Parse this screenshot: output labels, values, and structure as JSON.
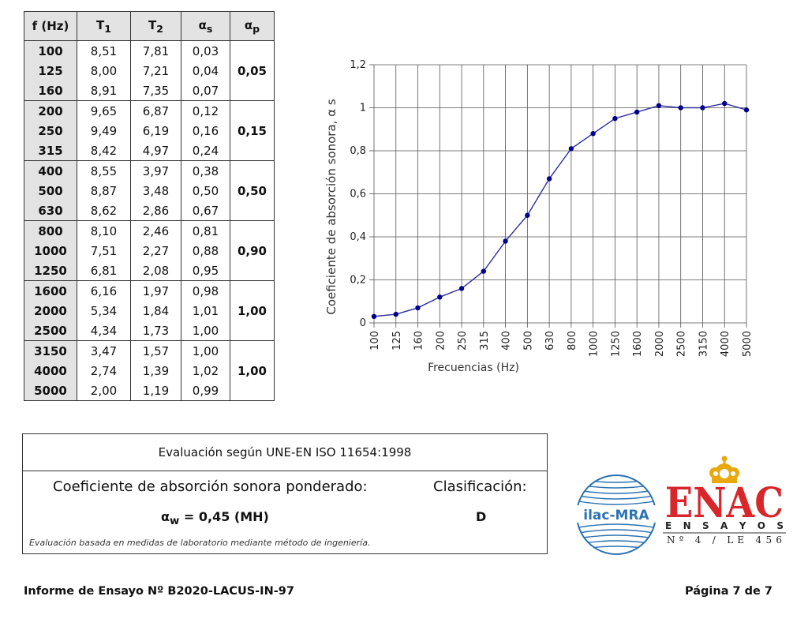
{
  "table": {
    "headers": [
      "f (Hz)",
      "T1",
      "T2",
      "αs",
      "αp"
    ],
    "groups": [
      {
        "rows": [
          [
            "100",
            "8,51",
            "7,81",
            "0,03"
          ],
          [
            "125",
            "8,00",
            "7,21",
            "0,04"
          ],
          [
            "160",
            "8,91",
            "7,35",
            "0,07"
          ]
        ],
        "ap": "0,05"
      },
      {
        "rows": [
          [
            "200",
            "9,65",
            "6,87",
            "0,12"
          ],
          [
            "250",
            "9,49",
            "6,19",
            "0,16"
          ],
          [
            "315",
            "8,42",
            "4,97",
            "0,24"
          ]
        ],
        "ap": "0,15"
      },
      {
        "rows": [
          [
            "400",
            "8,55",
            "3,97",
            "0,38"
          ],
          [
            "500",
            "8,87",
            "3,48",
            "0,50"
          ],
          [
            "630",
            "8,62",
            "2,86",
            "0,67"
          ]
        ],
        "ap": "0,50"
      },
      {
        "rows": [
          [
            "800",
            "8,10",
            "2,46",
            "0,81"
          ],
          [
            "1000",
            "7,51",
            "2,27",
            "0,88"
          ],
          [
            "1250",
            "6,81",
            "2,08",
            "0,95"
          ]
        ],
        "ap": "0,90"
      },
      {
        "rows": [
          [
            "1600",
            "6,16",
            "1,97",
            "0,98"
          ],
          [
            "2000",
            "5,34",
            "1,84",
            "1,01"
          ],
          [
            "2500",
            "4,34",
            "1,73",
            "1,00"
          ]
        ],
        "ap": "1,00"
      },
      {
        "rows": [
          [
            "3150",
            "3,47",
            "1,57",
            "1,00"
          ],
          [
            "4000",
            "2,74",
            "1,39",
            "1,02"
          ],
          [
            "5000",
            "2,00",
            "1,19",
            "0,99"
          ]
        ],
        "ap": "1,00"
      }
    ]
  },
  "chart_data": {
    "type": "line",
    "categories": [
      "100",
      "125",
      "160",
      "200",
      "250",
      "315",
      "400",
      "500",
      "630",
      "800",
      "1000",
      "1250",
      "1600",
      "2000",
      "2500",
      "3150",
      "4000",
      "5000"
    ],
    "series": [
      {
        "values": [
          0.03,
          0.04,
          0.07,
          0.12,
          0.16,
          0.24,
          0.38,
          0.5,
          0.67,
          0.81,
          0.88,
          0.95,
          0.98,
          1.01,
          1.0,
          1.0,
          1.02,
          0.99
        ]
      }
    ],
    "title": "",
    "xlabel": "Frecuencias (Hz)",
    "ylabel": "Coeficiente de absorción sonora, α s",
    "ylim": [
      0,
      1.2
    ],
    "yticks": [
      "0",
      "0,2",
      "0,4",
      "0,6",
      "0,8",
      "1",
      "1,2"
    ],
    "grid": true,
    "line_color": "#2e2e9e",
    "marker_color": "#00008b"
  },
  "evaluation": {
    "header": "Evaluación según UNE-EN ISO 11654:1998",
    "label": "Coeficiente de absorción sonora ponderado:",
    "class_label": "Clasificación:",
    "alpha_symbol": "α",
    "alpha_sub": "w",
    "alpha_value": " = 0,45 (MH)",
    "class_value": "D",
    "note": "Evaluación basada en medidas de laboratorio mediante método de ingeniería."
  },
  "logos": {
    "ilac": "ilac-MRA",
    "enac": "ENAC",
    "enac_sub": "E N S A Y O S",
    "enac_no": "Nº 4 / LE 456",
    "ilac_color": "#2b72b3",
    "enac_red": "#d8262b",
    "enac_gold": "#e8a90f"
  },
  "footer": {
    "left": "Informe de Ensayo Nº B2020-LACUS-IN-97",
    "right": "Página 7 de 7"
  }
}
